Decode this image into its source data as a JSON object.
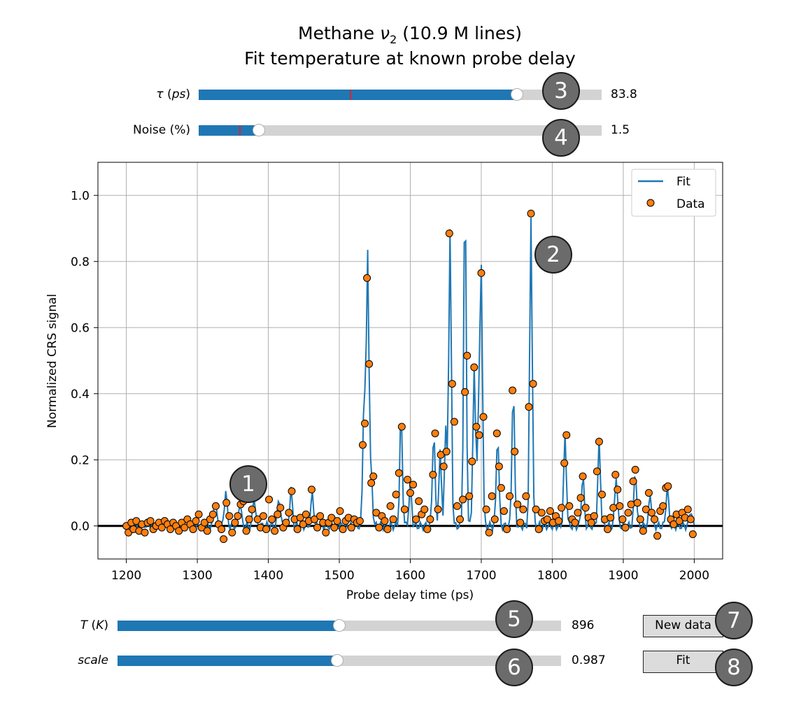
{
  "title": {
    "line1_pre": "Methane ",
    "line1_nu": "ν",
    "line1_sub": "2",
    "line1_post": " (10.9 M lines)",
    "line2": "Fit temperature at known probe delay"
  },
  "sliders": {
    "tau": {
      "label_sym": "τ",
      "label_unit": "ps",
      "value_text": "83.8",
      "fill_fraction": 0.79,
      "init_fraction": 0.375,
      "badge": "3"
    },
    "noise": {
      "label": "Noise (%)",
      "value_text": "1.5",
      "fill_fraction": 0.15,
      "init_fraction": 0.1,
      "badge": "4"
    },
    "temperature": {
      "label_sym": "T",
      "label_unit": "K",
      "value_text": "896",
      "fill_fraction": 0.5,
      "badge": "5"
    },
    "scale": {
      "label": "scale",
      "value_text": "0.987",
      "fill_fraction": 0.495,
      "badge": "6"
    }
  },
  "buttons": {
    "new_data": {
      "label": "New data",
      "badge": "7"
    },
    "fit": {
      "label": "Fit",
      "badge": "8"
    }
  },
  "annotations": {
    "badge1": "1",
    "badge2": "2"
  },
  "colors": {
    "fit": "#1f77b4",
    "data": "#ff7f0e",
    "track": "#d3d3d3",
    "init_marker": "#d62728",
    "badge": "#6b6b6b"
  },
  "chart_data": {
    "type": "line",
    "title": "",
    "xlabel": "Probe delay time (ps)",
    "ylabel": "Normalized CRS signal",
    "xlim": [
      1160,
      2040
    ],
    "ylim": [
      -0.1,
      1.1
    ],
    "xticks": [
      1200,
      1300,
      1400,
      1500,
      1600,
      1700,
      1800,
      1900,
      2000
    ],
    "yticks": [
      0.0,
      0.2,
      0.4,
      0.6,
      0.8,
      1.0
    ],
    "ytick_labels": [
      "0.0",
      "0.2",
      "0.4",
      "0.6",
      "0.8",
      "1.0"
    ],
    "grid": true,
    "legend": {
      "position": "top-right",
      "entries": [
        "Fit",
        "Data"
      ]
    },
    "peaks": [
      [
        1325,
        0.085
      ],
      [
        1340,
        0.11
      ],
      [
        1360,
        0.075
      ],
      [
        1380,
        0.09
      ],
      [
        1415,
        0.09
      ],
      [
        1432,
        0.11
      ],
      [
        1462,
        0.1
      ],
      [
        1535,
        0.4
      ],
      [
        1540,
        0.83
      ],
      [
        1545,
        0.15
      ],
      [
        1587,
        0.335
      ],
      [
        1600,
        0.13
      ],
      [
        1633,
        0.29
      ],
      [
        1642,
        0.22
      ],
      [
        1650,
        0.29
      ],
      [
        1656,
        0.885
      ],
      [
        1677,
        0.995
      ],
      [
        1690,
        0.48
      ],
      [
        1696,
        0.3
      ],
      [
        1700,
        0.765
      ],
      [
        1723,
        0.28
      ],
      [
        1745,
        0.415
      ],
      [
        1770,
        0.935
      ],
      [
        1818,
        0.275
      ],
      [
        1843,
        0.155
      ],
      [
        1866,
        0.255
      ],
      [
        1890,
        0.155
      ],
      [
        1917,
        0.17
      ],
      [
        1938,
        0.1
      ],
      [
        1962,
        0.12
      ],
      [
        1995,
        0.05
      ]
    ],
    "series": [
      {
        "name": "Fit",
        "style": "line",
        "x_range": [
          1200,
          2000
        ],
        "x_step": 2
      },
      {
        "name": "Data",
        "style": "scatter",
        "points": [
          [
            1200,
            0.0
          ],
          [
            1203,
            -0.02
          ],
          [
            1207,
            0.01
          ],
          [
            1210,
            -0.01
          ],
          [
            1214,
            0.015
          ],
          [
            1218,
            -0.015
          ],
          [
            1222,
            0.005
          ],
          [
            1226,
            -0.02
          ],
          [
            1230,
            0.01
          ],
          [
            1234,
            0.015
          ],
          [
            1238,
            -0.01
          ],
          [
            1242,
            0.0
          ],
          [
            1246,
            0.01
          ],
          [
            1250,
            -0.005
          ],
          [
            1254,
            0.015
          ],
          [
            1258,
            0.005
          ],
          [
            1262,
            -0.01
          ],
          [
            1266,
            0.01
          ],
          [
            1270,
            0.0
          ],
          [
            1274,
            -0.015
          ],
          [
            1278,
            0.01
          ],
          [
            1282,
            -0.005
          ],
          [
            1286,
            0.02
          ],
          [
            1290,
            0.005
          ],
          [
            1294,
            -0.01
          ],
          [
            1298,
            0.015
          ],
          [
            1302,
            0.035
          ],
          [
            1306,
            -0.005
          ],
          [
            1310,
            0.01
          ],
          [
            1314,
            -0.015
          ],
          [
            1318,
            0.02
          ],
          [
            1322,
            0.035
          ],
          [
            1326,
            0.06
          ],
          [
            1330,
            0.005
          ],
          [
            1334,
            -0.01
          ],
          [
            1337,
            -0.04
          ],
          [
            1341,
            0.07
          ],
          [
            1345,
            0.03
          ],
          [
            1349,
            -0.02
          ],
          [
            1353,
            0.01
          ],
          [
            1357,
            0.03
          ],
          [
            1361,
            0.065
          ],
          [
            1365,
            0.075
          ],
          [
            1369,
            -0.015
          ],
          [
            1373,
            0.02
          ],
          [
            1377,
            0.05
          ],
          [
            1381,
            0.09
          ],
          [
            1385,
            0.02
          ],
          [
            1389,
            -0.005
          ],
          [
            1393,
            0.03
          ],
          [
            1397,
            -0.01
          ],
          [
            1401,
            0.08
          ],
          [
            1405,
            0.02
          ],
          [
            1409,
            -0.015
          ],
          [
            1413,
            0.035
          ],
          [
            1417,
            0.055
          ],
          [
            1421,
            -0.005
          ],
          [
            1425,
            0.01
          ],
          [
            1429,
            0.04
          ],
          [
            1433,
            0.105
          ],
          [
            1437,
            0.02
          ],
          [
            1441,
            -0.01
          ],
          [
            1445,
            0.025
          ],
          [
            1449,
            0.005
          ],
          [
            1453,
            0.035
          ],
          [
            1457,
            0.015
          ],
          [
            1461,
            0.11
          ],
          [
            1465,
            0.02
          ],
          [
            1469,
            -0.005
          ],
          [
            1473,
            0.03
          ],
          [
            1477,
            0.01
          ],
          [
            1481,
            -0.02
          ],
          [
            1485,
            0.01
          ],
          [
            1489,
            0.025
          ],
          [
            1493,
            -0.005
          ],
          [
            1497,
            0.015
          ],
          [
            1501,
            0.045
          ],
          [
            1505,
            -0.01
          ],
          [
            1509,
            0.015
          ],
          [
            1513,
            0.025
          ],
          [
            1517,
            -0.005
          ],
          [
            1521,
            0.02
          ],
          [
            1525,
            0.01
          ],
          [
            1529,
            0.015
          ],
          [
            1533,
            0.245
          ],
          [
            1536,
            0.31
          ],
          [
            1539,
            0.75
          ],
          [
            1542,
            0.49
          ],
          [
            1545,
            0.13
          ],
          [
            1548,
            0.15
          ],
          [
            1552,
            0.04
          ],
          [
            1556,
            -0.005
          ],
          [
            1560,
            0.03
          ],
          [
            1564,
            0.015
          ],
          [
            1568,
            -0.01
          ],
          [
            1572,
            0.06
          ],
          [
            1576,
            0.02
          ],
          [
            1580,
            0.095
          ],
          [
            1584,
            0.16
          ],
          [
            1588,
            0.3
          ],
          [
            1592,
            0.05
          ],
          [
            1596,
            0.14
          ],
          [
            1600,
            0.1
          ],
          [
            1604,
            0.125
          ],
          [
            1608,
            0.02
          ],
          [
            1612,
            0.075
          ],
          [
            1616,
            0.035
          ],
          [
            1620,
            0.05
          ],
          [
            1624,
            -0.01
          ],
          [
            1628,
            0.02
          ],
          [
            1632,
            0.155
          ],
          [
            1635,
            0.28
          ],
          [
            1639,
            0.05
          ],
          [
            1643,
            0.215
          ],
          [
            1647,
            0.18
          ],
          [
            1651,
            0.225
          ],
          [
            1655,
            0.885
          ],
          [
            1659,
            0.43
          ],
          [
            1662,
            0.315
          ],
          [
            1666,
            0.06
          ],
          [
            1670,
            0.02
          ],
          [
            1674,
            0.08
          ],
          [
            1677,
            0.405
          ],
          [
            1680,
            0.515
          ],
          [
            1683,
            0.09
          ],
          [
            1687,
            0.195
          ],
          [
            1690,
            0.48
          ],
          [
            1693,
            0.3
          ],
          [
            1697,
            0.275
          ],
          [
            1700,
            0.765
          ],
          [
            1703,
            0.33
          ],
          [
            1707,
            0.05
          ],
          [
            1711,
            -0.02
          ],
          [
            1715,
            0.09
          ],
          [
            1719,
            0.02
          ],
          [
            1722,
            0.28
          ],
          [
            1725,
            0.18
          ],
          [
            1728,
            0.115
          ],
          [
            1732,
            0.045
          ],
          [
            1736,
            -0.01
          ],
          [
            1740,
            0.09
          ],
          [
            1744,
            0.41
          ],
          [
            1747,
            0.225
          ],
          [
            1751,
            0.065
          ],
          [
            1755,
            0.01
          ],
          [
            1759,
            0.05
          ],
          [
            1763,
            0.09
          ],
          [
            1767,
            0.36
          ],
          [
            1770,
            0.945
          ],
          [
            1773,
            0.43
          ],
          [
            1777,
            0.05
          ],
          [
            1781,
            -0.01
          ],
          [
            1785,
            0.04
          ],
          [
            1789,
            0.015
          ],
          [
            1793,
            0.02
          ],
          [
            1797,
            0.045
          ],
          [
            1801,
            0.01
          ],
          [
            1805,
            0.03
          ],
          [
            1809,
            0.015
          ],
          [
            1813,
            0.055
          ],
          [
            1817,
            0.19
          ],
          [
            1820,
            0.275
          ],
          [
            1824,
            0.06
          ],
          [
            1828,
            0.02
          ],
          [
            1832,
            0.01
          ],
          [
            1836,
            0.04
          ],
          [
            1840,
            0.085
          ],
          [
            1843,
            0.15
          ],
          [
            1847,
            0.055
          ],
          [
            1851,
            0.025
          ],
          [
            1855,
            0.01
          ],
          [
            1859,
            0.03
          ],
          [
            1863,
            0.165
          ],
          [
            1866,
            0.255
          ],
          [
            1870,
            0.095
          ],
          [
            1874,
            0.02
          ],
          [
            1878,
            -0.01
          ],
          [
            1882,
            0.025
          ],
          [
            1886,
            0.055
          ],
          [
            1889,
            0.155
          ],
          [
            1892,
            0.11
          ],
          [
            1895,
            0.06
          ],
          [
            1899,
            0.02
          ],
          [
            1903,
            -0.005
          ],
          [
            1907,
            0.04
          ],
          [
            1911,
            0.065
          ],
          [
            1914,
            0.135
          ],
          [
            1917,
            0.17
          ],
          [
            1920,
            0.07
          ],
          [
            1924,
            0.02
          ],
          [
            1928,
            -0.015
          ],
          [
            1932,
            0.05
          ],
          [
            1936,
            0.1
          ],
          [
            1940,
            0.04
          ],
          [
            1944,
            0.02
          ],
          [
            1948,
            -0.03
          ],
          [
            1952,
            0.045
          ],
          [
            1956,
            0.06
          ],
          [
            1960,
            0.115
          ],
          [
            1963,
            0.12
          ],
          [
            1967,
            0.02
          ],
          [
            1971,
            0.005
          ],
          [
            1975,
            0.035
          ],
          [
            1979,
            0.015
          ],
          [
            1983,
            0.04
          ],
          [
            1987,
            0.025
          ],
          [
            1991,
            0.05
          ],
          [
            1995,
            0.02
          ],
          [
            1998,
            -0.025
          ]
        ]
      }
    ]
  }
}
